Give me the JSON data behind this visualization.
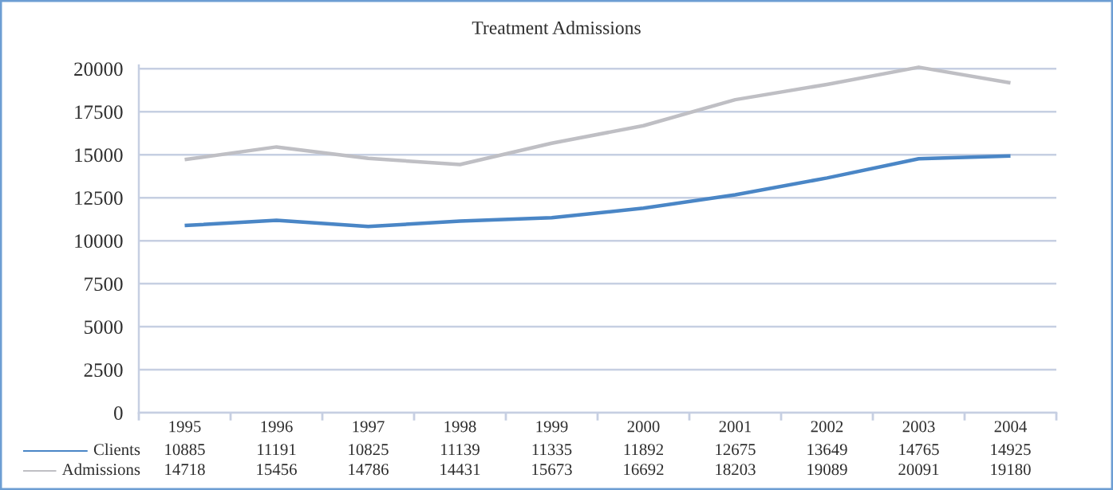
{
  "chart_data": {
    "type": "line",
    "title": "Treatment Admissions",
    "categories": [
      "1995",
      "1996",
      "1997",
      "1998",
      "1999",
      "2000",
      "2001",
      "2002",
      "2003",
      "2004"
    ],
    "series": [
      {
        "name": "Clients",
        "color": "#4a86c6",
        "values": [
          10885,
          11191,
          10825,
          11139,
          11335,
          11892,
          12675,
          13649,
          14765,
          14925
        ]
      },
      {
        "name": "Admissions",
        "color": "#bfbfc4",
        "values": [
          14718,
          15456,
          14786,
          14431,
          15673,
          16692,
          18203,
          19089,
          20091,
          19180
        ]
      }
    ],
    "ylim": [
      0,
      20200
    ],
    "yticks": [
      0,
      2500,
      5000,
      7500,
      10000,
      12500,
      15000,
      17500,
      20000
    ],
    "grid": "y",
    "legend": "bottom",
    "data_labels": true,
    "line_style": "solid"
  }
}
